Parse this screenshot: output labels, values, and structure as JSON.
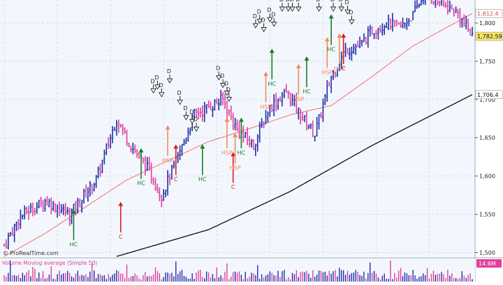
{
  "watermark": "© ProRealTime.com",
  "volume_label": "Volume Moving average (Simple 50)",
  "volume_value": "14.6M",
  "price_tags": {
    "ma_fast": "1,812.4",
    "last": "1,782.59",
    "ma_slow": "1,706.4"
  },
  "colors": {
    "background": "#f3f7fd",
    "grid": "#d0dcea",
    "up_bar": "#1f2fa8",
    "down_bar": "#e0419a",
    "ma_fast": "#f07070",
    "ma_slow": "#1a1a1a",
    "hc": "#1a7a2a",
    "c": "#d81e1e",
    "hsp": "#f08a5a",
    "d": "#222222",
    "last_tag": "#f6e36a"
  },
  "chart_data": {
    "type": "ohlc",
    "y_ticks": [
      1500,
      1550,
      1600,
      1650,
      1700,
      1750,
      1800
    ],
    "y_tick_labels": [
      "1,500",
      "1,550",
      "1,600",
      "1,650",
      "1,700",
      "1,750",
      "1,800"
    ],
    "ylim": [
      1495,
      1830
    ],
    "bar_count": 230,
    "close_keypoints": [
      [
        0,
        1510
      ],
      [
        8,
        1548
      ],
      [
        20,
        1568
      ],
      [
        32,
        1550
      ],
      [
        45,
        1595
      ],
      [
        55,
        1675
      ],
      [
        62,
        1640
      ],
      [
        70,
        1610
      ],
      [
        77,
        1575
      ],
      [
        85,
        1625
      ],
      [
        93,
        1680
      ],
      [
        100,
        1690
      ],
      [
        107,
        1700
      ],
      [
        114,
        1660
      ],
      [
        122,
        1640
      ],
      [
        130,
        1690
      ],
      [
        138,
        1710
      ],
      [
        145,
        1680
      ],
      [
        152,
        1655
      ],
      [
        160,
        1730
      ],
      [
        167,
        1765
      ],
      [
        174,
        1770
      ],
      [
        180,
        1790
      ],
      [
        187,
        1800
      ],
      [
        194,
        1795
      ],
      [
        200,
        1810
      ],
      [
        206,
        1840
      ],
      [
        214,
        1825
      ],
      [
        222,
        1812
      ],
      [
        229,
        1782.59
      ]
    ],
    "ma_fast_keypoints": [
      [
        0,
        1495
      ],
      [
        20,
        1525
      ],
      [
        40,
        1560
      ],
      [
        60,
        1595
      ],
      [
        80,
        1620
      ],
      [
        100,
        1645
      ],
      [
        120,
        1662
      ],
      [
        140,
        1680
      ],
      [
        160,
        1692
      ],
      [
        180,
        1730
      ],
      [
        200,
        1770
      ],
      [
        229,
        1812.4
      ]
    ],
    "ma_slow_keypoints": [
      [
        55,
        1495
      ],
      [
        100,
        1530
      ],
      [
        140,
        1580
      ],
      [
        180,
        1640
      ],
      [
        229,
        1706.4
      ]
    ],
    "signals": [
      {
        "type": "HC",
        "bar": 34,
        "price": 1560
      },
      {
        "type": "C",
        "bar": 57,
        "price": 1570
      },
      {
        "type": "HC",
        "bar": 67,
        "price": 1640
      },
      {
        "type": "HSP",
        "bar": 80,
        "price": 1670
      },
      {
        "type": "C",
        "bar": 84,
        "price": 1645
      },
      {
        "type": "HC",
        "bar": 97,
        "price": 1645
      },
      {
        "type": "HSP",
        "bar": 109,
        "price": 1680
      },
      {
        "type": "C",
        "bar": 112,
        "price": 1635
      },
      {
        "type": "HSP",
        "bar": 113,
        "price": 1660
      },
      {
        "type": "HC",
        "bar": 116,
        "price": 1680
      },
      {
        "type": "HSP",
        "bar": 128,
        "price": 1740
      },
      {
        "type": "HC",
        "bar": 131,
        "price": 1770
      },
      {
        "type": "HSP",
        "bar": 144,
        "price": 1750
      },
      {
        "type": "HC",
        "bar": 148,
        "price": 1760
      },
      {
        "type": "HSP",
        "bar": 158,
        "price": 1785
      },
      {
        "type": "HC",
        "bar": 160,
        "price": 1815
      },
      {
        "type": "HSP",
        "bar": 164,
        "price": 1790
      },
      {
        "type": "C",
        "bar": 166,
        "price": 1790
      }
    ],
    "d_marks": [
      {
        "bar": 73,
        "price": 1705
      },
      {
        "bar": 75,
        "price": 1710
      },
      {
        "bar": 77,
        "price": 1700
      },
      {
        "bar": 81,
        "price": 1718
      },
      {
        "bar": 86,
        "price": 1690
      },
      {
        "bar": 89,
        "price": 1670
      },
      {
        "bar": 92,
        "price": 1665
      },
      {
        "bar": 94,
        "price": 1655
      },
      {
        "bar": 105,
        "price": 1722
      },
      {
        "bar": 107,
        "price": 1712
      },
      {
        "bar": 109,
        "price": 1702
      },
      {
        "bar": 110,
        "price": 1694
      },
      {
        "bar": 123,
        "price": 1790
      },
      {
        "bar": 125,
        "price": 1796
      },
      {
        "bar": 127,
        "price": 1785
      },
      {
        "bar": 130,
        "price": 1798
      },
      {
        "bar": 132,
        "price": 1792
      },
      {
        "bar": 136,
        "price": 1812
      },
      {
        "bar": 139,
        "price": 1835
      },
      {
        "bar": 141,
        "price": 1838
      },
      {
        "bar": 144,
        "price": 1835
      },
      {
        "bar": 154,
        "price": 1840
      },
      {
        "bar": 161,
        "price": 1830
      },
      {
        "bar": 165,
        "price": 1820
      },
      {
        "bar": 168,
        "price": 1808
      },
      {
        "bar": 170,
        "price": 1795
      }
    ]
  }
}
